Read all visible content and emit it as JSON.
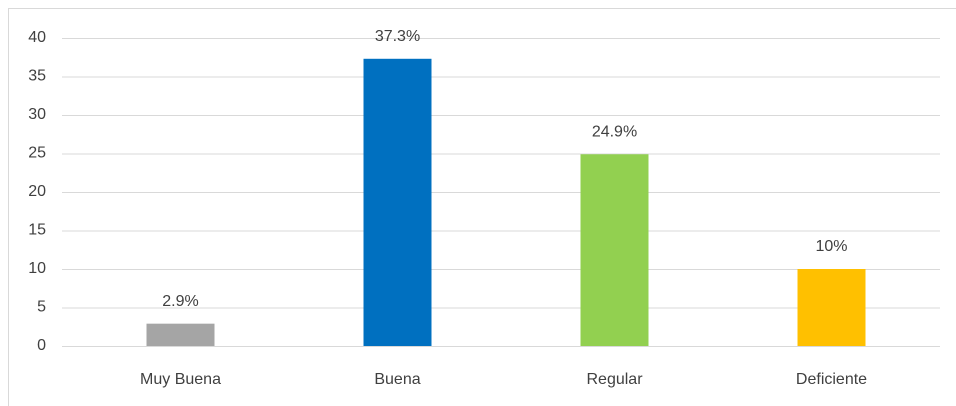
{
  "chart_data": {
    "type": "bar",
    "categories": [
      "Muy Buena",
      "Buena",
      "Regular",
      "Deficiente"
    ],
    "values": [
      2.9,
      37.3,
      24.9,
      10
    ],
    "value_labels": [
      "2.9%",
      "37.3%",
      "24.9%",
      "10%"
    ],
    "colors": [
      "#a5a5a5",
      "#0070c0",
      "#92d050",
      "#ffc000"
    ],
    "ylim": [
      0,
      40
    ],
    "yticks": [
      0,
      5,
      10,
      15,
      20,
      25,
      30,
      35,
      40
    ],
    "grid": true
  }
}
